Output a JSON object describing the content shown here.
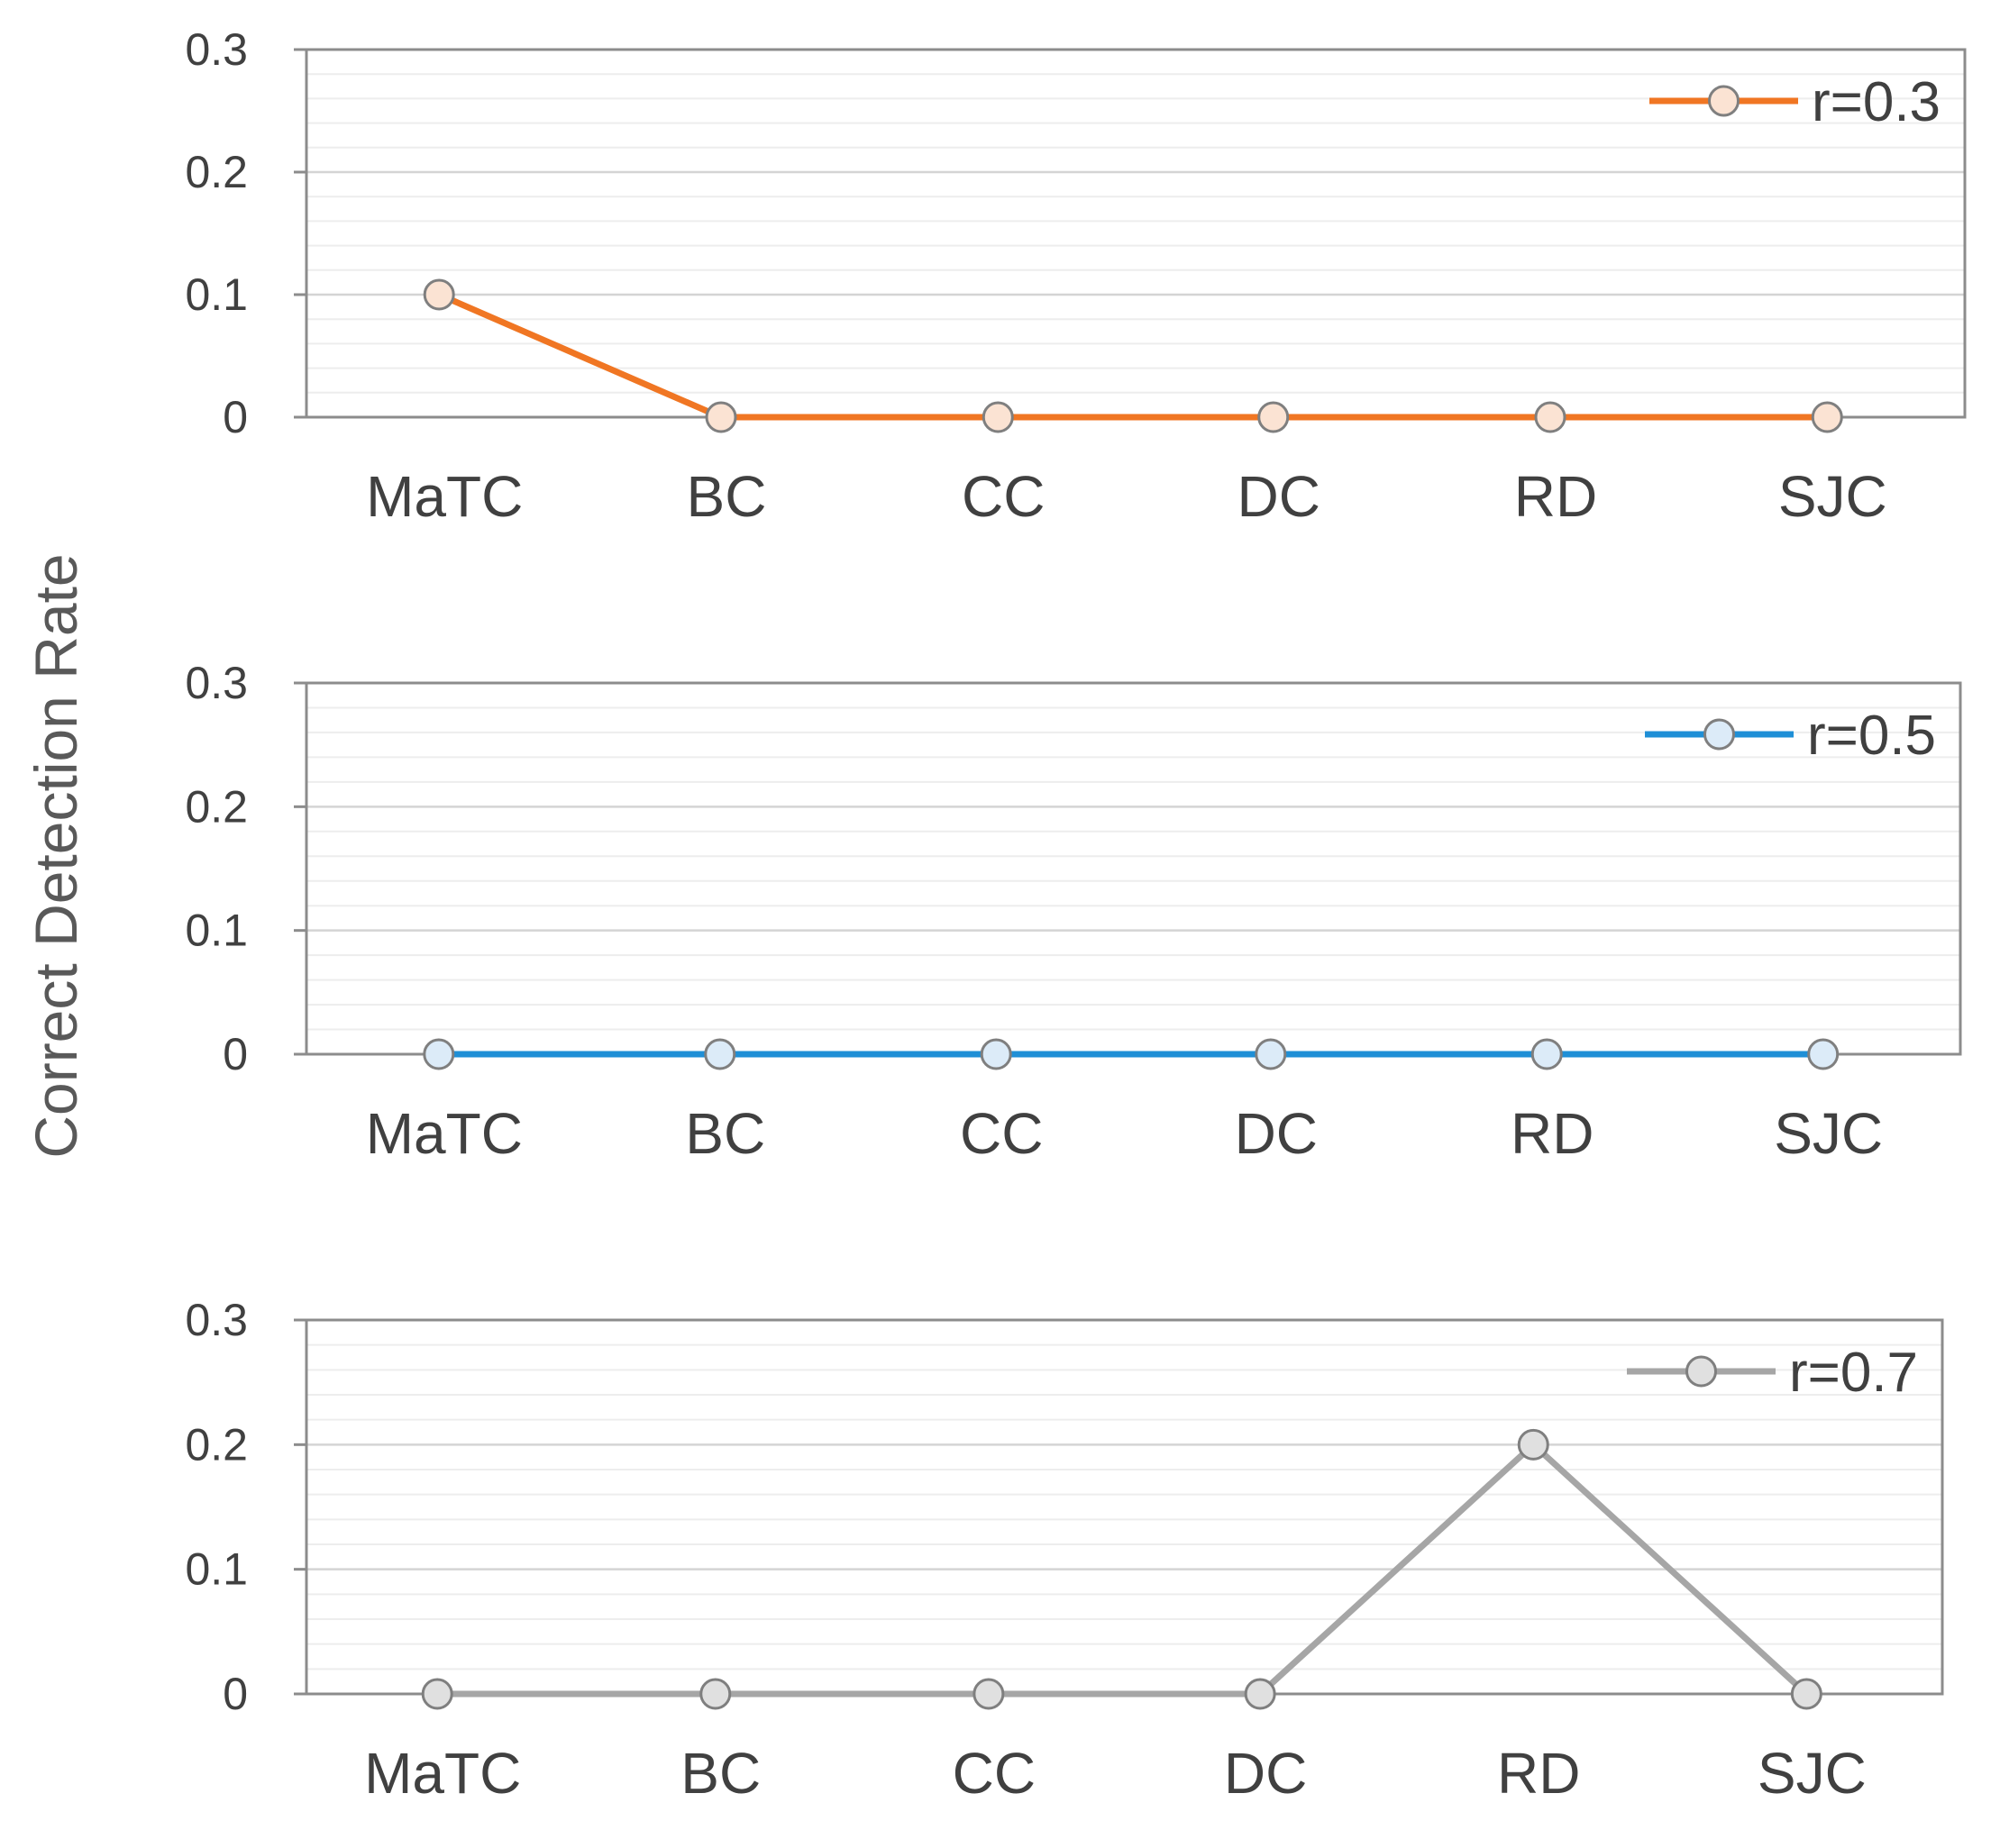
{
  "chart_data": {
    "type": "line",
    "ylabel": "Correct Detection Rate",
    "categories": [
      "MaTC",
      "BC",
      "CC",
      "DC",
      "RD",
      "SJC"
    ],
    "ylim": [
      0,
      0.3
    ],
    "yticks": [
      0,
      0.1,
      0.2,
      0.3
    ],
    "ytick_labels": [
      "0",
      "0.1",
      "0.2",
      "0.3"
    ],
    "grid": true,
    "panels": [
      {
        "series": [
          {
            "name": "r=0.3",
            "values": [
              0.1,
              0,
              0,
              0,
              0,
              0
            ]
          }
        ],
        "legend": "top-right",
        "line_color": "#F07623",
        "marker_fill": "#FBE3D3"
      },
      {
        "series": [
          {
            "name": "r=0.5",
            "values": [
              0,
              0,
              0,
              0,
              0,
              0
            ]
          }
        ],
        "legend": "top-right",
        "line_color": "#1F8FD6",
        "marker_fill": "#DCEBF8"
      },
      {
        "series": [
          {
            "name": "r=0.7",
            "values": [
              0,
              0,
              0,
              0,
              0.2,
              0
            ]
          }
        ],
        "legend": "top-right",
        "line_color": "#A6A6A6",
        "marker_fill": "#E0E0E0"
      }
    ]
  }
}
